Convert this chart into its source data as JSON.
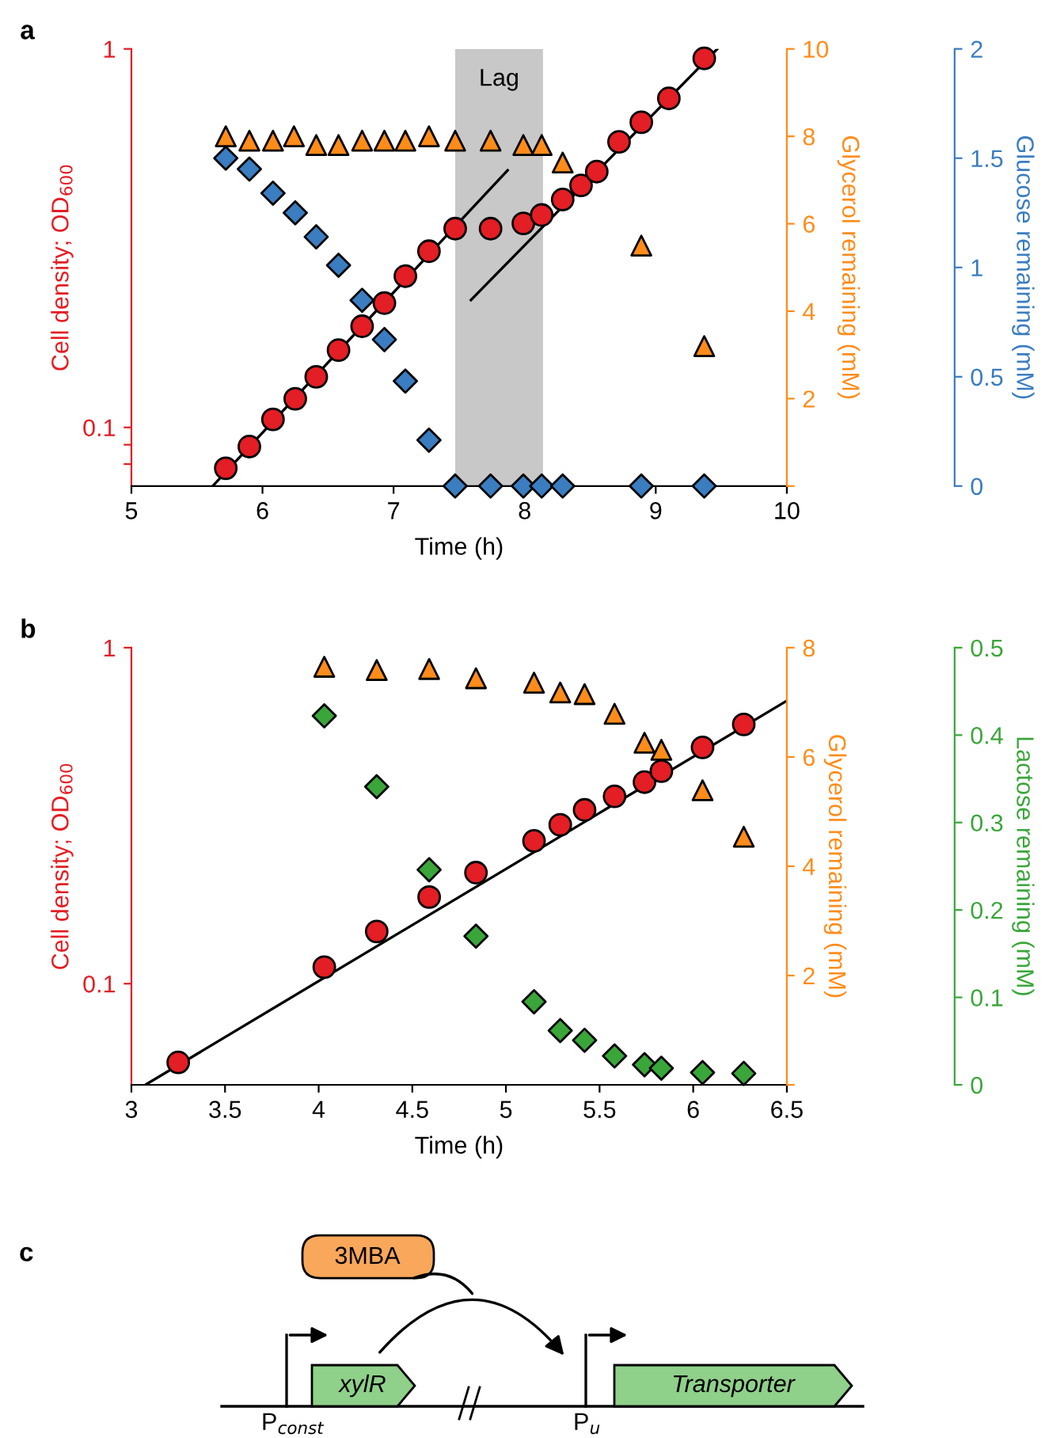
{
  "chart_data": [
    {
      "type": "scatter",
      "annotations": [
        "a"
      ],
      "xlabel": "Time (h)",
      "ylabel": "Cell density; OD$_{600}$",
      "y2label": "Glycerol remaining (mM)",
      "y3label": "Glucose remaining (mM)",
      "log": "y",
      "xlim": [
        5,
        10
      ],
      "xticks": [
        5,
        6,
        7,
        8,
        9,
        10
      ],
      "ylim": [
        0.07,
        1
      ],
      "yticks": [
        {
          "value": 0.08,
          "label": null
        },
        {
          "value": 0.09,
          "label": null
        },
        0.1,
        1
      ],
      "y2lim": [
        0,
        10
      ],
      "y2ticks": [
        {
          "value": 0,
          "label": null
        },
        2,
        4,
        6,
        8,
        10
      ],
      "y3lim": [
        0,
        2
      ],
      "y3ticks": [
        0,
        0.5,
        1,
        1.5,
        2
      ],
      "bands": [
        {
          "axis": "x",
          "from": 7.47,
          "to": 8.14,
          "label": "Lag",
          "color": "#c8c8c8"
        }
      ],
      "series": [
        {
          "type": "line",
          "color": "#000000",
          "line_style": "solid",
          "x": [
            5.62,
            7.87
          ],
          "values": [
            0.07,
            0.478
          ]
        },
        {
          "type": "line",
          "color": "#000000",
          "line_style": "solid",
          "x": [
            7.59,
            9.47
          ],
          "values": [
            0.217,
            1.0
          ]
        },
        {
          "type": "scatter",
          "marker": "circle",
          "color": "#e31e24",
          "axis": "y",
          "x": [
            5.72,
            5.9,
            6.08,
            6.25,
            6.41,
            6.58,
            6.76,
            6.93,
            7.09,
            7.27,
            7.47,
            7.74,
            7.99,
            8.13,
            8.29,
            8.43,
            8.55,
            8.72,
            8.89,
            9.1,
            9.37
          ],
          "values": [
            0.078,
            0.089,
            0.105,
            0.119,
            0.136,
            0.16,
            0.185,
            0.213,
            0.251,
            0.292,
            0.335,
            0.335,
            0.346,
            0.364,
            0.4,
            0.436,
            0.474,
            0.568,
            0.64,
            0.74,
            0.944
          ]
        },
        {
          "type": "scatter",
          "marker": "triangle",
          "color": "#ff8c1a",
          "axis": "y2",
          "x": [
            5.72,
            5.9,
            6.08,
            6.24,
            6.41,
            6.58,
            6.76,
            6.93,
            7.09,
            7.27,
            7.47,
            7.74,
            7.99,
            8.13,
            8.29,
            8.89,
            9.37
          ],
          "values": [
            8.0,
            7.9,
            7.9,
            8.0,
            7.8,
            7.8,
            7.9,
            7.9,
            7.9,
            8.0,
            7.9,
            7.9,
            7.8,
            7.8,
            7.4,
            5.5,
            3.2
          ]
        },
        {
          "type": "scatter",
          "marker": "diamond",
          "color": "#3a7dc0",
          "axis": "y3",
          "x": [
            5.72,
            5.9,
            6.08,
            6.25,
            6.41,
            6.58,
            6.76,
            6.93,
            7.09,
            7.27,
            7.47,
            7.74,
            7.99,
            8.13,
            8.29,
            8.89,
            9.37
          ],
          "values": [
            1.5,
            1.45,
            1.34,
            1.25,
            1.14,
            1.01,
            0.85,
            0.67,
            0.48,
            0.21,
            0,
            0,
            0,
            0,
            0,
            0,
            0
          ]
        }
      ]
    },
    {
      "type": "scatter",
      "annotations": [
        "b"
      ],
      "xlabel": "Time (h)",
      "ylabel": "Cell density; OD$_{600}$",
      "y2label": "Glycerol remaining (mM)",
      "y3label": "Lactose remaining (mM)",
      "log": "y",
      "xlim": [
        3,
        6.5
      ],
      "xticks": [
        3,
        3.5,
        4,
        4.5,
        5,
        5.5,
        6,
        6.5
      ],
      "ylim": [
        0.05,
        1
      ],
      "yticks": [
        0.1,
        1
      ],
      "y2lim": [
        0,
        8
      ],
      "y2ticks": [
        {
          "value": 0,
          "label": null
        },
        2,
        4,
        6,
        8
      ],
      "y3lim": [
        0,
        0.5
      ],
      "y3ticks": [
        0,
        0.1,
        0.2,
        0.3,
        0.4,
        0.5
      ],
      "series": [
        {
          "type": "line",
          "color": "#000000",
          "line_style": "solid",
          "x": [
            3.08,
            6.5
          ],
          "values": [
            0.0502,
            0.695
          ]
        },
        {
          "type": "scatter",
          "marker": "circle",
          "color": "#e31e24",
          "axis": "y",
          "x": [
            3.25,
            4.03,
            4.31,
            4.59,
            4.84,
            5.15,
            5.29,
            5.42,
            5.58,
            5.74,
            5.83,
            6.05,
            6.27
          ],
          "values": [
            0.0583,
            0.112,
            0.143,
            0.181,
            0.214,
            0.266,
            0.297,
            0.329,
            0.361,
            0.398,
            0.429,
            0.505,
            0.591
          ]
        },
        {
          "type": "scatter",
          "marker": "triangle",
          "color": "#ff8c1a",
          "axis": "y2",
          "x": [
            4.03,
            4.31,
            4.59,
            4.84,
            5.15,
            5.29,
            5.42,
            5.58,
            5.74,
            5.83,
            6.05,
            6.27
          ],
          "values": [
            7.65,
            7.59,
            7.61,
            7.44,
            7.36,
            7.18,
            7.15,
            6.79,
            6.26,
            6.13,
            5.39,
            4.54
          ]
        },
        {
          "type": "scatter",
          "marker": "diamond",
          "color": "#3aa63a",
          "axis": "y3",
          "x": [
            4.03,
            4.31,
            4.59,
            4.84,
            5.15,
            5.29,
            5.42,
            5.58,
            5.74,
            5.83,
            6.05,
            6.27
          ],
          "values": [
            0.422,
            0.341,
            0.246,
            0.17,
            0.095,
            0.062,
            0.051,
            0.033,
            0.023,
            0.019,
            0.014,
            0.013
          ]
        }
      ]
    },
    {
      "type": "other",
      "annotations": [
        "c",
        "3MBA",
        "xylR",
        "Transporter",
        "P$_{const}$",
        "P$_{u}$"
      ]
    }
  ]
}
